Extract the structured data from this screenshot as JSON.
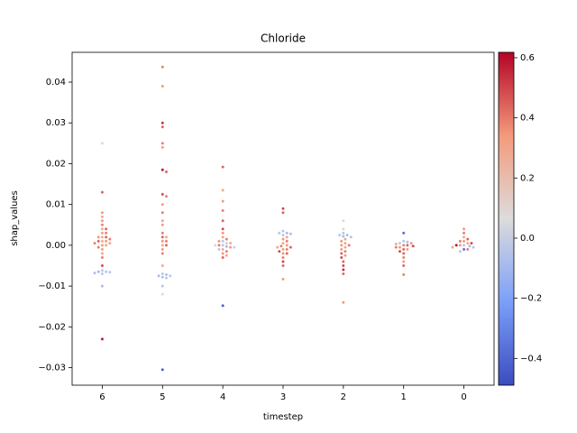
{
  "chart_data": {
    "type": "swarm",
    "title": "Chloride",
    "x_label": "timestep",
    "y_label": "shap_values",
    "categories": [
      "6",
      "5",
      "4",
      "3",
      "2",
      "1",
      "0"
    ],
    "values": [
      [
        0.025,
        0.013,
        0.008,
        0.007,
        0.006,
        0.005,
        0.004,
        0.004,
        0.003,
        0.003,
        0.002,
        0.002,
        0.002,
        0.0015,
        0.001,
        0.001,
        0.001,
        0.0005,
        0.0005,
        0,
        0,
        -0.0005,
        -0.001,
        -0.002,
        -0.003,
        -0.005,
        -0.0062,
        -0.0065,
        -0.0065,
        -0.0066,
        -0.0068,
        -0.007,
        -0.01,
        -0.023
      ],
      [
        0.0437,
        0.039,
        0.03,
        0.029,
        0.025,
        0.024,
        0.0185,
        0.018,
        0.0125,
        0.012,
        0.01,
        0.008,
        0.006,
        0.005,
        0.003,
        0.002,
        0.002,
        0.001,
        0.001,
        0,
        0,
        -0.001,
        -0.002,
        -0.005,
        -0.007,
        -0.0072,
        -0.0075,
        -0.0075,
        -0.0078,
        -0.008,
        -0.01,
        -0.012,
        -0.0305
      ],
      [
        0.0192,
        0.0135,
        0.0108,
        0.0085,
        0.006,
        0.004,
        0.003,
        0.002,
        0.0015,
        0.001,
        0.001,
        0.0005,
        0.0005,
        0,
        0,
        0,
        -0.0003,
        -0.0005,
        -0.0005,
        -0.001,
        -0.001,
        -0.0015,
        -0.002,
        -0.0025,
        -0.003,
        -0.0148
      ],
      [
        0.009,
        0.008,
        0.0035,
        0.003,
        0.003,
        0.0028,
        0.0025,
        0.002,
        0.0015,
        0.001,
        0.0005,
        0,
        -0.0002,
        -0.0005,
        -0.0005,
        -0.001,
        -0.001,
        -0.0015,
        -0.002,
        -0.002,
        -0.003,
        -0.004,
        -0.005,
        -0.0083
      ],
      [
        0.006,
        0.004,
        0.003,
        0.0025,
        0.0025,
        0.0022,
        0.002,
        0.0015,
        0.001,
        0.0005,
        0,
        0,
        -0.0005,
        -0.001,
        -0.0015,
        -0.002,
        -0.0025,
        -0.003,
        -0.004,
        -0.005,
        -0.006,
        -0.007,
        -0.014
      ],
      [
        0.003,
        0.001,
        0.0008,
        0.0005,
        0.0005,
        0.0003,
        0,
        0,
        -0.0002,
        -0.0005,
        -0.0005,
        -0.001,
        -0.001,
        -0.0015,
        -0.002,
        -0.003,
        -0.004,
        -0.005,
        -0.0072
      ],
      [
        0.004,
        0.003,
        0.002,
        0.0015,
        0.001,
        0.001,
        0.0005,
        0.0005,
        0,
        0,
        0,
        -0.0002,
        -0.0005,
        -0.0005,
        -0.001,
        -0.001,
        -0.0015
      ]
    ],
    "color_values": [
      [
        0.05,
        0.45,
        0.35,
        0.3,
        0.35,
        0.4,
        0.3,
        0.45,
        0.35,
        0.4,
        0.3,
        0.45,
        0.35,
        0.4,
        0.3,
        0.35,
        0.45,
        0.3,
        0.4,
        0.35,
        0.3,
        0.4,
        0.35,
        0.3,
        0.4,
        0.5,
        -0.05,
        -0.05,
        -0.1,
        -0.05,
        -0.08,
        -0.05,
        -0.1,
        0.6
      ],
      [
        0.4,
        0.35,
        0.55,
        0.45,
        0.4,
        0.35,
        0.6,
        0.45,
        0.5,
        0.4,
        0.35,
        0.4,
        0.3,
        0.35,
        0.4,
        0.45,
        0.3,
        0.35,
        0.4,
        0.3,
        0.45,
        0.35,
        0.4,
        0.3,
        -0.05,
        -0.08,
        -0.1,
        -0.05,
        -0.08,
        -0.05,
        -0.05,
        0.05,
        -0.45
      ],
      [
        0.45,
        0.3,
        0.35,
        0.4,
        0.45,
        0.5,
        0.35,
        0.3,
        0.4,
        -0.05,
        0.35,
        0.0,
        0.3,
        -0.05,
        0.4,
        0.1,
        -0.1,
        0.35,
        0.0,
        0.3,
        -0.05,
        0.4,
        0.35,
        0.3,
        0.45,
        -0.45
      ],
      [
        0.5,
        0.45,
        -0.05,
        -0.1,
        -0.05,
        -0.08,
        -0.05,
        0.3,
        0.35,
        0.4,
        0.3,
        0.35,
        0.4,
        0.3,
        0.45,
        0.35,
        0.4,
        0.5,
        0.35,
        0.45,
        0.4,
        0.5,
        0.45,
        0.35
      ],
      [
        0.05,
        0.1,
        -0.05,
        -0.08,
        -0.05,
        -0.1,
        -0.05,
        0.3,
        0.35,
        0.3,
        0.35,
        0.4,
        0.3,
        0.35,
        0.4,
        0.45,
        0.35,
        0.5,
        0.45,
        0.5,
        0.55,
        0.45,
        0.35
      ],
      [
        -0.4,
        -0.05,
        -0.08,
        -0.05,
        0.35,
        0.3,
        0.4,
        0.45,
        0.5,
        0.35,
        0.4,
        0.45,
        0.35,
        0.5,
        0.45,
        0.4,
        0.35,
        0.45,
        0.4
      ],
      [
        0.35,
        0.4,
        0.3,
        0.45,
        0.35,
        0.4,
        0.3,
        0.5,
        -0.05,
        0.35,
        0.6,
        -0.1,
        -0.05,
        0.3,
        -0.4,
        0.4,
        -0.05
      ]
    ],
    "colormap": "coolwarm",
    "ylim": [
      -0.0343,
      0.0473
    ],
    "yticks": [
      {
        "value": -0.03,
        "label": "−0.03"
      },
      {
        "value": -0.02,
        "label": "−0.02"
      },
      {
        "value": -0.01,
        "label": "−0.01"
      },
      {
        "value": 0,
        "label": "0.00"
      },
      0.01,
      0.02,
      0.03,
      0.04
    ],
    "clim": [
      -0.489,
      0.618
    ],
    "cticks": [
      {
        "value": -0.4,
        "label": "−0.4"
      },
      {
        "value": -0.2,
        "label": "−0.2"
      },
      {
        "value": 0,
        "label": "0.0"
      },
      0.2,
      0.4,
      0.6
    ]
  }
}
